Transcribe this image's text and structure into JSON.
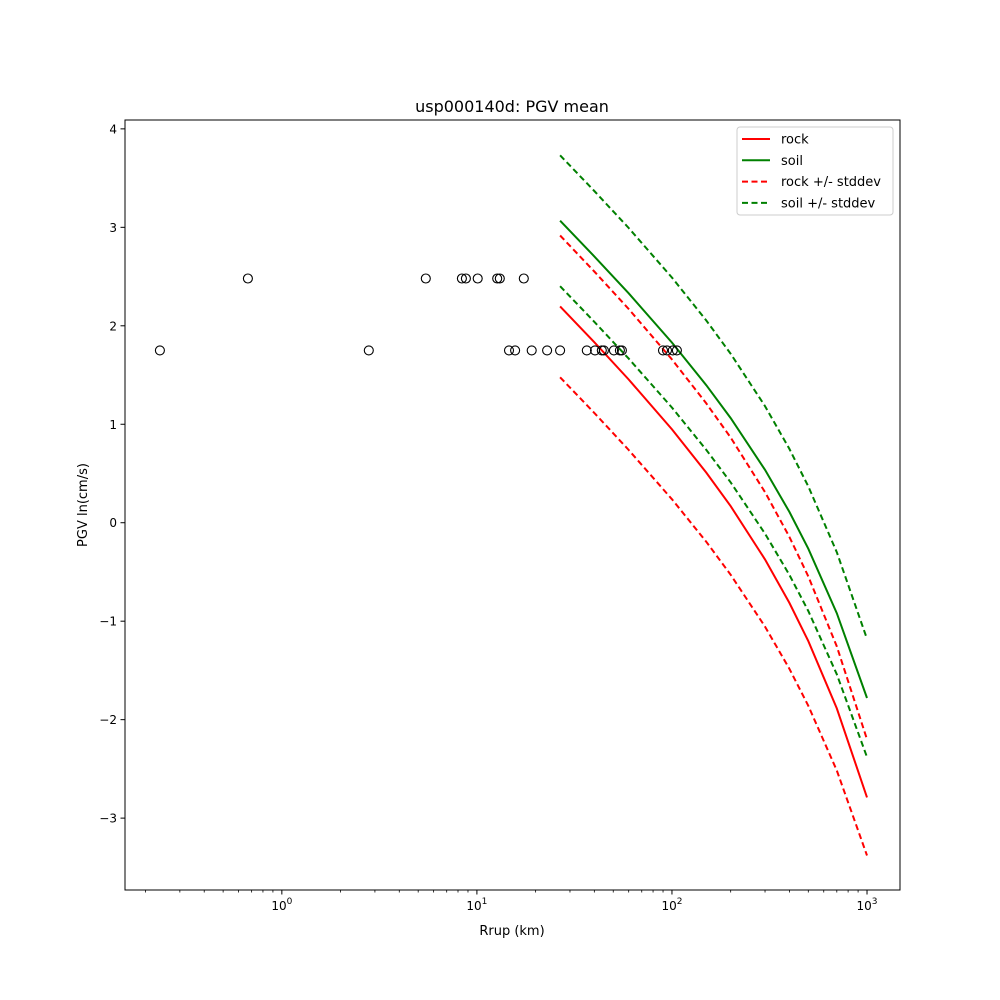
{
  "chart_data": {
    "type": "line",
    "title": "usp000140d: PGV mean",
    "xlabel": "Rrup (km)",
    "ylabel": "PGV ln(cm/s)",
    "xscale": "log",
    "xlim": [
      0.157,
      1476
    ],
    "ylim": [
      -3.73,
      4.09
    ],
    "grid": false,
    "legend_placement": "top-right",
    "x_ticks": [
      {
        "value": 1,
        "base": "10",
        "exp": "0"
      },
      {
        "value": 10,
        "base": "10",
        "exp": "1"
      },
      {
        "value": 100,
        "base": "10",
        "exp": "2"
      },
      {
        "value": 1000,
        "base": "10",
        "exp": "3"
      }
    ],
    "y_ticks": [
      {
        "value": -3,
        "label": "−3"
      },
      {
        "value": -2,
        "label": "−2"
      },
      {
        "value": -1,
        "label": "−1"
      },
      {
        "value": 0,
        "label": "0"
      },
      {
        "value": 1,
        "label": "1"
      },
      {
        "value": 2,
        "label": "2"
      },
      {
        "value": 3,
        "label": "3"
      },
      {
        "value": 4,
        "label": "4"
      }
    ],
    "x": [
      26.7,
      40,
      60,
      100,
      150,
      200,
      300,
      400,
      500,
      700,
      1000
    ],
    "series": [
      {
        "name": "rock",
        "color": "#ff0000",
        "dash": false,
        "legend": true,
        "values": [
          2.197,
          1.833,
          1.455,
          0.948,
          0.509,
          0.168,
          -0.372,
          -0.814,
          -1.202,
          -1.886,
          -2.79
        ]
      },
      {
        "name": "soil",
        "color": "#008000",
        "dash": false,
        "legend": true,
        "values": [
          3.067,
          2.705,
          2.33,
          1.829,
          1.397,
          1.063,
          0.537,
          0.11,
          -0.264,
          -0.919,
          -1.78
        ]
      },
      {
        "name": "rock +/- stddev",
        "color": "#ff0000",
        "dash": true,
        "legend": true,
        "values": [
          2.917,
          2.551,
          2.171,
          1.658,
          1.212,
          0.865,
          0.311,
          -0.144,
          -0.545,
          -1.256,
          -2.2
        ]
      },
      {
        "name": "rock +/- stddev",
        "color": "#ff0000",
        "dash": true,
        "legend": false,
        "values": [
          1.477,
          1.115,
          0.739,
          0.238,
          -0.194,
          -0.529,
          -1.055,
          -1.484,
          -1.859,
          -2.516,
          -3.38
        ]
      },
      {
        "name": "soil +/- stddev",
        "color": "#008000",
        "dash": true,
        "legend": true,
        "values": [
          3.732,
          3.369,
          2.993,
          2.489,
          2.054,
          1.716,
          1.184,
          0.75,
          0.369,
          -0.299,
          -1.18
        ]
      },
      {
        "name": "soil +/- stddev",
        "color": "#008000",
        "dash": true,
        "legend": false,
        "values": [
          2.402,
          2.041,
          1.667,
          1.169,
          0.74,
          0.41,
          -0.11,
          -0.53,
          -0.897,
          -1.539,
          -2.38
        ]
      }
    ],
    "observations": {
      "marker": "open-circle",
      "color": "#000000",
      "points": [
        [
          0.67,
          2.48
        ],
        [
          5.47,
          2.48
        ],
        [
          8.38,
          2.48
        ],
        [
          8.78,
          2.48
        ],
        [
          10.1,
          2.48
        ],
        [
          12.7,
          2.48
        ],
        [
          13.1,
          2.48
        ],
        [
          17.4,
          2.48
        ],
        [
          0.237,
          1.75
        ],
        [
          2.79,
          1.75
        ],
        [
          14.6,
          1.75
        ],
        [
          15.7,
          1.75
        ],
        [
          19.1,
          1.75
        ],
        [
          22.9,
          1.75
        ],
        [
          26.7,
          1.75
        ],
        [
          36.6,
          1.75
        ],
        [
          40.3,
          1.75
        ],
        [
          43.7,
          1.75
        ],
        [
          44.8,
          1.75
        ],
        [
          50.4,
          1.75
        ],
        [
          54.1,
          1.75
        ],
        [
          55.4,
          1.75
        ],
        [
          90,
          1.75
        ],
        [
          94.3,
          1.75
        ],
        [
          101,
          1.75
        ],
        [
          106,
          1.75
        ]
      ]
    }
  }
}
